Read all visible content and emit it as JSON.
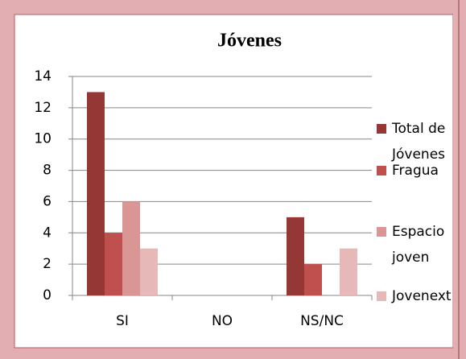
{
  "chart_data": {
    "type": "bar",
    "title": "Jóvenes",
    "categories": [
      "SI",
      "NO",
      "NS/NC"
    ],
    "series": [
      {
        "name": "Total de Jóvenes",
        "color": "#953735",
        "values": [
          13,
          0,
          5
        ]
      },
      {
        "name": "Fragua",
        "color": "#c0504d",
        "values": [
          4,
          0,
          2
        ]
      },
      {
        "name": "Espacio joven",
        "color": "#d99694",
        "values": [
          6,
          0,
          0
        ]
      },
      {
        "name": "Jovenext",
        "color": "#e6b9b8",
        "values": [
          3,
          0,
          3
        ]
      }
    ],
    "ylim": [
      0,
      14
    ],
    "yticks": [
      0,
      2,
      4,
      6,
      8,
      10,
      12,
      14
    ],
    "grid": true,
    "legend": "right"
  }
}
